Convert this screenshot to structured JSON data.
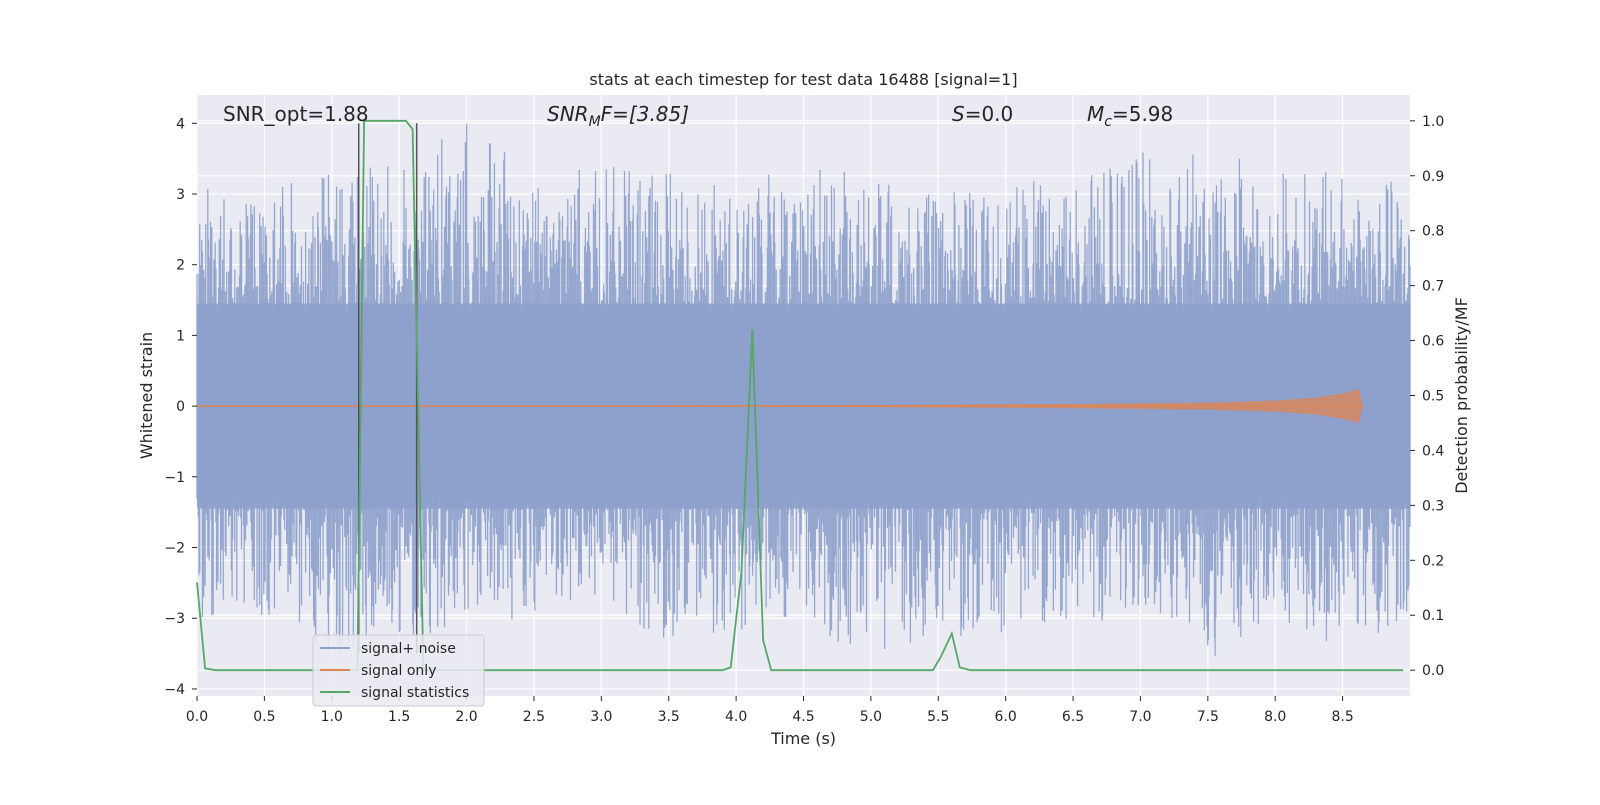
{
  "colors": {
    "plot_bg": "#EAEAF2",
    "grid": "#FFFFFF",
    "noise": "#8DA0CB",
    "signal": "#DD8452",
    "stats": "#55A868",
    "marker": "#555555"
  },
  "chart_data": {
    "type": "line",
    "title": "stats at each timestep for test data 16488 [signal=1]",
    "xlabel": "Time (s)",
    "ylabel": "Whitened strain",
    "ylabel_right": "Detection probability/MF",
    "xlim": [
      0,
      9.0
    ],
    "ylim": [
      -4.1,
      4.4
    ],
    "ylim_right": [
      -0.047,
      1.047
    ],
    "x_ticks": [
      0,
      0.5,
      1,
      1.5,
      2,
      2.5,
      3,
      3.5,
      4,
      4.5,
      5,
      5.5,
      6,
      6.5,
      7,
      7.5,
      8,
      8.5
    ],
    "x_tick_labels": [
      "0.0",
      "0.5",
      "1.0",
      "1.5",
      "2.0",
      "2.5",
      "3.0",
      "3.5",
      "4.0",
      "4.5",
      "5.0",
      "5.5",
      "6.0",
      "6.5",
      "7.0",
      "7.5",
      "8.0",
      "8.5"
    ],
    "y_ticks": [
      -4,
      -3,
      -2,
      -1,
      0,
      1,
      2,
      3,
      4
    ],
    "y_tick_labels": [
      "−4",
      "−3",
      "−2",
      "−1",
      "0",
      "1",
      "2",
      "3",
      "4"
    ],
    "y_ticks_right": [
      0,
      0.1,
      0.2,
      0.3,
      0.4,
      0.5,
      0.6,
      0.7,
      0.8,
      0.9,
      1.0
    ],
    "y_tick_labels_right": [
      "0.0",
      "0.1",
      "0.2",
      "0.3",
      "0.4",
      "0.5",
      "0.6",
      "0.7",
      "0.8",
      "0.9",
      "1.0"
    ],
    "annotations": {
      "snr_opt": "SNR_opt=1.88",
      "snr_mf_base": "SNR",
      "snr_mf_sub": "M",
      "snr_mf_rest": "F=[3.85]",
      "s_var": "S",
      "s_rest": "=0.0",
      "mc_base": "M",
      "mc_sub": "c",
      "mc_rest": "=5.98"
    },
    "markers_x": [
      1.2,
      1.63
    ],
    "legend": {
      "location": "lower-left",
      "entries": [
        "signal+ noise",
        "signal only",
        "signal statistics"
      ]
    },
    "series": [
      {
        "name": "signal+ noise",
        "axis": "left",
        "description_only": false,
        "envelope": {
          "x": [
            0,
            0.5,
            1.0,
            1.2,
            1.5,
            2.0,
            2.5,
            3.0,
            3.5,
            4.0,
            4.5,
            5.0,
            5.5,
            6.0,
            6.5,
            7.0,
            7.5,
            8.0,
            8.5,
            9.0
          ],
          "max": [
            3.1,
            3.0,
            3.4,
            3.5,
            3.4,
            4.0,
            3.3,
            3.4,
            3.3,
            3.1,
            3.5,
            3.2,
            3.0,
            3.2,
            3.2,
            3.6,
            3.6,
            3.4,
            3.3,
            3.2
          ],
          "min": [
            -3.0,
            -3.0,
            -3.5,
            -3.6,
            -3.3,
            -3.2,
            -3.0,
            -3.0,
            -3.3,
            -3.2,
            -3.0,
            -3.7,
            -3.3,
            -3.2,
            -3.1,
            -3.0,
            -3.6,
            -3.2,
            -3.4,
            -3.1
          ]
        }
      },
      {
        "name": "signal only",
        "axis": "left",
        "envelope": {
          "x": [
            0,
            3.0,
            5.0,
            6.5,
            7.5,
            8.0,
            8.3,
            8.5,
            8.62,
            8.65
          ],
          "amp": [
            0.01,
            0.01,
            0.015,
            0.03,
            0.05,
            0.08,
            0.12,
            0.18,
            0.24,
            0.0
          ]
        }
      },
      {
        "name": "signal statistics",
        "axis": "right",
        "x": [
          0,
          0.06,
          0.14,
          1.1,
          1.19,
          1.24,
          1.55,
          1.6,
          1.68,
          1.75,
          3.9,
          3.96,
          4.04,
          4.12,
          4.2,
          4.26,
          5.46,
          5.52,
          5.6,
          5.66,
          5.74,
          8.95
        ],
        "y": [
          0.16,
          0.003,
          0.0,
          0.0,
          0.0,
          1.0,
          1.0,
          0.985,
          0.0,
          0.0,
          0.0,
          0.005,
          0.18,
          0.62,
          0.055,
          0.0,
          0.0,
          0.025,
          0.067,
          0.005,
          0.0,
          0.0
        ]
      }
    ]
  }
}
